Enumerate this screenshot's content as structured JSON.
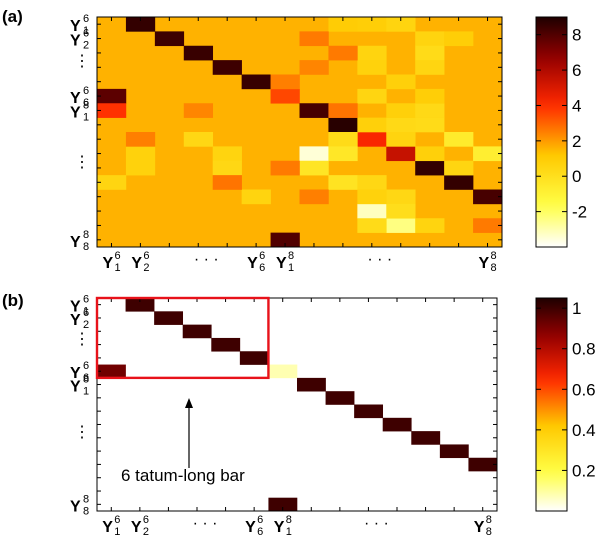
{
  "chart_data": [
    {
      "panel_label": "(a)",
      "type": "heatmap",
      "rows": 16,
      "cols": 14,
      "y_tick_labels": [
        {
          "base": "Y",
          "sub": "1",
          "sup": "6",
          "row": 0
        },
        {
          "base": "Y",
          "sub": "2",
          "sup": "6",
          "row": 1
        },
        {
          "text": "⋮",
          "row": 2.5
        },
        {
          "base": "Y",
          "sub": "6",
          "sup": "6",
          "row": 5
        },
        {
          "base": "Y",
          "sub": "1",
          "sup": "8",
          "row": 6
        },
        {
          "text": "⋮",
          "row": 9.5
        },
        {
          "base": "Y",
          "sub": "8",
          "sup": "8",
          "row": 15
        }
      ],
      "x_tick_labels": [
        {
          "base": "Y",
          "sub": "1",
          "sup": "6",
          "col": 0
        },
        {
          "base": "Y",
          "sub": "2",
          "sup": "6",
          "col": 1
        },
        {
          "text": "· · ·",
          "col": 3
        },
        {
          "base": "Y",
          "sub": "6",
          "sup": "6",
          "col": 5
        },
        {
          "base": "Y",
          "sub": "1",
          "sup": "8",
          "col": 6
        },
        {
          "text": "· · ·",
          "col": 9
        },
        {
          "base": "Y",
          "sub": "8",
          "sup": "8",
          "col": 13
        }
      ],
      "colorbar": {
        "min": -4,
        "max": 9,
        "ticks": [
          -2,
          0,
          2,
          4,
          6,
          8
        ],
        "colormap": "hot-reversed"
      },
      "background_value": 1.6,
      "cells": [
        [
          0,
          1,
          8.6
        ],
        [
          1,
          2,
          8.4
        ],
        [
          2,
          3,
          8.5
        ],
        [
          3,
          4,
          8.4
        ],
        [
          4,
          5,
          8.5
        ],
        [
          5,
          0,
          7.8
        ],
        [
          6,
          0,
          3.9
        ],
        [
          5,
          6,
          3.5
        ],
        [
          6,
          7,
          8.2
        ],
        [
          7,
          8,
          8.8
        ],
        [
          8,
          9,
          4.2
        ],
        [
          9,
          10,
          5.5
        ],
        [
          10,
          11,
          8.6
        ],
        [
          11,
          12,
          8.6
        ],
        [
          12,
          13,
          8.2
        ],
        [
          15,
          6,
          8.0
        ],
        [
          9,
          7,
          -3.5
        ],
        [
          13,
          9,
          -3.2
        ],
        [
          14,
          10,
          -2.4
        ],
        [
          9,
          13,
          -0.8
        ],
        [
          8,
          12,
          -0.6
        ],
        [
          7,
          11,
          0.2
        ],
        [
          8,
          8,
          0.2
        ],
        [
          9,
          8,
          -0.4
        ],
        [
          10,
          7,
          -0.3
        ],
        [
          11,
          8,
          -0.2
        ],
        [
          12,
          10,
          0.4
        ],
        [
          13,
          10,
          0.1
        ],
        [
          7,
          9,
          0.8
        ],
        [
          7,
          10,
          0.3
        ],
        [
          8,
          10,
          0.6
        ],
        [
          9,
          11,
          0.8
        ],
        [
          10,
          12,
          0.5
        ],
        [
          11,
          9,
          0.4
        ],
        [
          12,
          9,
          0.7
        ],
        [
          14,
          9,
          0.2
        ],
        [
          14,
          11,
          0.6
        ],
        [
          1,
          11,
          0.6
        ],
        [
          2,
          11,
          0.2
        ],
        [
          3,
          11,
          0.5
        ],
        [
          1,
          12,
          0.9
        ],
        [
          2,
          9,
          0.6
        ],
        [
          0,
          8,
          1.0
        ],
        [
          0,
          9,
          0.9
        ],
        [
          0,
          10,
          0.6
        ],
        [
          5,
          9,
          0.5
        ],
        [
          6,
          10,
          0.8
        ],
        [
          6,
          11,
          0.3
        ],
        [
          8,
          3,
          0.4
        ],
        [
          9,
          4,
          0.6
        ],
        [
          10,
          1,
          0.7
        ],
        [
          11,
          0,
          0.5
        ],
        [
          10,
          4,
          0.4
        ],
        [
          12,
          5,
          0.6
        ],
        [
          9,
          1,
          0.7
        ],
        [
          3,
          9,
          0.7
        ],
        [
          4,
          10,
          0.8
        ],
        [
          5,
          11,
          0.9
        ],
        [
          1,
          7,
          2.6
        ],
        [
          2,
          8,
          2.6
        ],
        [
          4,
          6,
          2.5
        ],
        [
          6,
          8,
          2.7
        ],
        [
          3,
          7,
          2.4
        ],
        [
          10,
          6,
          2.6
        ],
        [
          12,
          7,
          2.5
        ],
        [
          14,
          13,
          2.6
        ],
        [
          8,
          1,
          2.5
        ],
        [
          6,
          3,
          2.4
        ],
        [
          11,
          4,
          2.7
        ]
      ]
    },
    {
      "panel_label": "(b)",
      "type": "heatmap",
      "rows": 16,
      "cols": 14,
      "y_tick_labels": [
        {
          "base": "Y",
          "sub": "1",
          "sup": "6",
          "row": 0
        },
        {
          "base": "Y",
          "sub": "2",
          "sup": "6",
          "row": 1
        },
        {
          "text": "⋮",
          "row": 2.5
        },
        {
          "base": "Y",
          "sub": "6",
          "sup": "6",
          "row": 5
        },
        {
          "base": "Y",
          "sub": "1",
          "sup": "8",
          "row": 6
        },
        {
          "text": "⋮",
          "row": 9.5
        },
        {
          "base": "Y",
          "sub": "8",
          "sup": "8",
          "row": 15
        }
      ],
      "x_tick_labels": [
        {
          "base": "Y",
          "sub": "1",
          "sup": "6",
          "col": 0
        },
        {
          "base": "Y",
          "sub": "2",
          "sup": "6",
          "col": 1
        },
        {
          "text": "· · ·",
          "col": 3
        },
        {
          "base": "Y",
          "sub": "6",
          "sup": "6",
          "col": 5
        },
        {
          "base": "Y",
          "sub": "1",
          "sup": "8",
          "col": 6
        },
        {
          "text": "· · ·",
          "col": 9
        },
        {
          "base": "Y",
          "sub": "8",
          "sup": "8",
          "col": 13
        }
      ],
      "colorbar": {
        "min": 0,
        "max": 1.05,
        "ticks": [
          0.2,
          0.4,
          0.6,
          0.8,
          1
        ],
        "colormap": "hot-reversed"
      },
      "background_value": 0,
      "cells": [
        [
          0,
          1,
          1.0
        ],
        [
          1,
          2,
          1.0
        ],
        [
          2,
          3,
          1.0
        ],
        [
          3,
          4,
          1.0
        ],
        [
          4,
          5,
          1.0
        ],
        [
          5,
          0,
          0.92
        ],
        [
          5,
          6,
          0.08
        ],
        [
          6,
          7,
          1.0
        ],
        [
          7,
          8,
          1.0
        ],
        [
          8,
          9,
          1.0
        ],
        [
          9,
          10,
          1.0
        ],
        [
          10,
          11,
          1.0
        ],
        [
          11,
          12,
          1.0
        ],
        [
          12,
          13,
          1.0
        ],
        [
          15,
          6,
          1.0
        ]
      ],
      "highlight_box": {
        "row_start": 0,
        "row_end": 5,
        "col_start": 0,
        "col_end": 5,
        "color": "#e8121a"
      },
      "annotation": "6 tatum-long bar"
    }
  ]
}
